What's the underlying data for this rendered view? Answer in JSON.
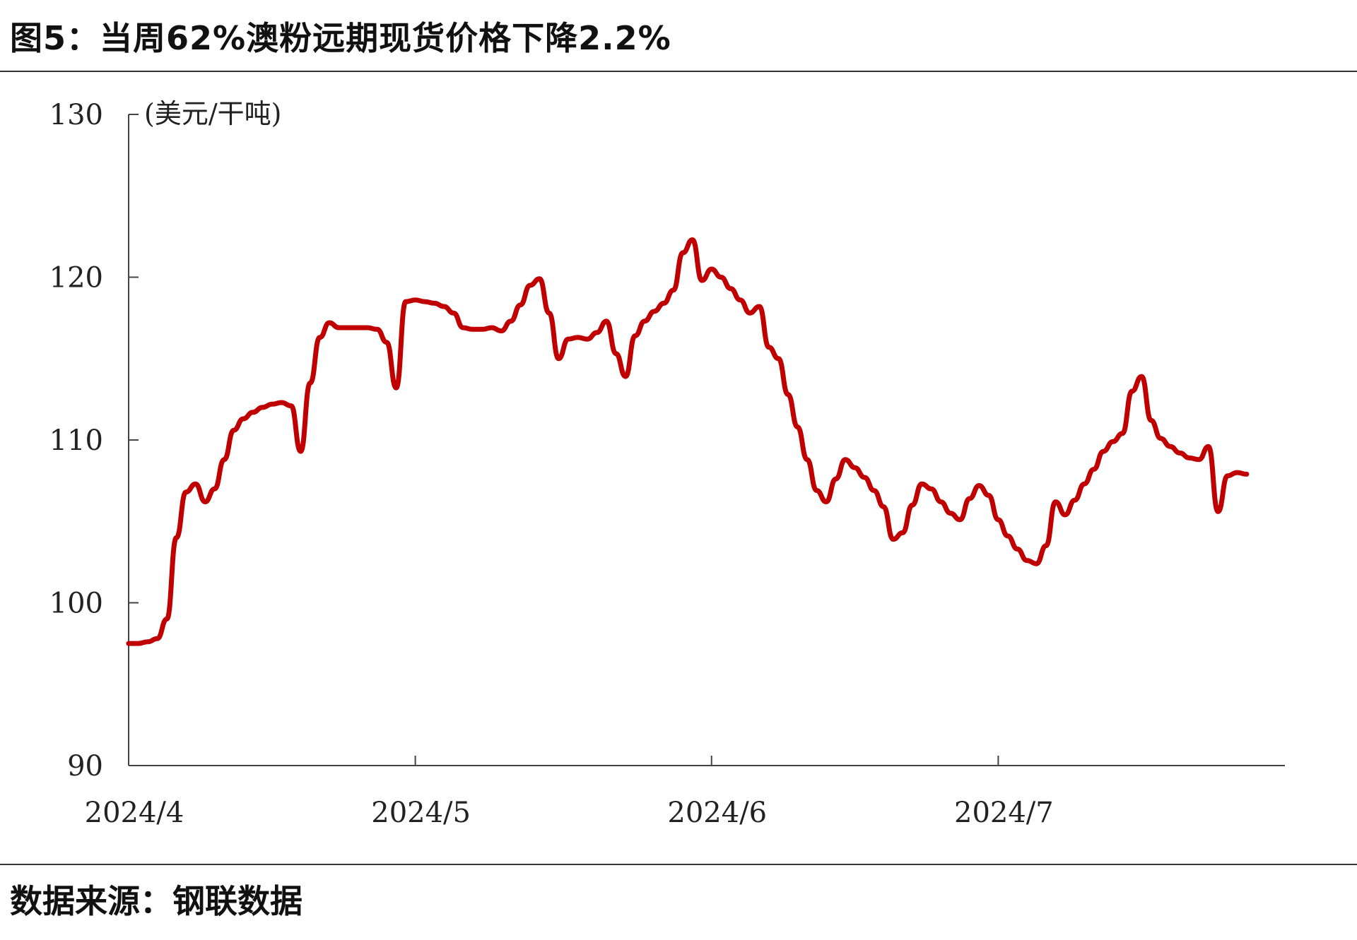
{
  "header": {
    "title": "图5：当周62%澳粉远期现货价格下降2.2%"
  },
  "footer": {
    "source": "数据来源：钢联数据"
  },
  "chart_data": {
    "type": "line",
    "title": "图5：当周62%澳粉远期现货价格下降2.2%",
    "unit": "(美元/干吨)",
    "xlabel": "",
    "ylabel": "",
    "ylim": [
      90,
      130
    ],
    "yticks": [
      90,
      100,
      110,
      120,
      130
    ],
    "xticks": [
      {
        "date": "2024-04-01",
        "label": "2024/4"
      },
      {
        "date": "2024-05-01",
        "label": "2024/5"
      },
      {
        "date": "2024-06-01",
        "label": "2024/6"
      },
      {
        "date": "2024-07-01",
        "label": "2024/7"
      }
    ],
    "xlim": [
      "2024-04-01",
      "2024-07-31"
    ],
    "grid": false,
    "legend": "none",
    "color": "#C00000",
    "series": [
      {
        "name": "",
        "points": [
          [
            "2024-04-01",
            97.5
          ],
          [
            "2024-04-02",
            97.5
          ],
          [
            "2024-04-03",
            97.6
          ],
          [
            "2024-04-04",
            97.8
          ],
          [
            "2024-04-05",
            99.0
          ],
          [
            "2024-04-06",
            104.0
          ],
          [
            "2024-04-07",
            106.8
          ],
          [
            "2024-04-08",
            107.3
          ],
          [
            "2024-04-09",
            106.2
          ],
          [
            "2024-04-10",
            107.0
          ],
          [
            "2024-04-11",
            108.8
          ],
          [
            "2024-04-12",
            110.6
          ],
          [
            "2024-04-13",
            111.3
          ],
          [
            "2024-04-14",
            111.7
          ],
          [
            "2024-04-15",
            112.0
          ],
          [
            "2024-04-16",
            112.2
          ],
          [
            "2024-04-17",
            112.3
          ],
          [
            "2024-04-18",
            112.1
          ],
          [
            "2024-04-19",
            109.3
          ],
          [
            "2024-04-20",
            113.5
          ],
          [
            "2024-04-21",
            116.3
          ],
          [
            "2024-04-22",
            117.2
          ],
          [
            "2024-04-23",
            116.9
          ],
          [
            "2024-04-24",
            116.9
          ],
          [
            "2024-04-25",
            116.9
          ],
          [
            "2024-04-26",
            116.9
          ],
          [
            "2024-04-27",
            116.8
          ],
          [
            "2024-04-28",
            116.0
          ],
          [
            "2024-04-29",
            113.2
          ],
          [
            "2024-04-30",
            118.5
          ],
          [
            "2024-05-01",
            118.6
          ],
          [
            "2024-05-02",
            118.5
          ],
          [
            "2024-05-03",
            118.4
          ],
          [
            "2024-05-04",
            118.2
          ],
          [
            "2024-05-05",
            117.8
          ],
          [
            "2024-05-06",
            116.9
          ],
          [
            "2024-05-07",
            116.8
          ],
          [
            "2024-05-08",
            116.8
          ],
          [
            "2024-05-09",
            116.9
          ],
          [
            "2024-05-10",
            116.7
          ],
          [
            "2024-05-11",
            117.3
          ],
          [
            "2024-05-12",
            118.3
          ],
          [
            "2024-05-13",
            119.5
          ],
          [
            "2024-05-14",
            119.9
          ],
          [
            "2024-05-15",
            117.8
          ],
          [
            "2024-05-16",
            115.0
          ],
          [
            "2024-05-17",
            116.2
          ],
          [
            "2024-05-18",
            116.3
          ],
          [
            "2024-05-19",
            116.2
          ],
          [
            "2024-05-20",
            116.6
          ],
          [
            "2024-05-21",
            117.3
          ],
          [
            "2024-05-22",
            115.3
          ],
          [
            "2024-05-23",
            113.9
          ],
          [
            "2024-05-24",
            116.4
          ],
          [
            "2024-05-25",
            117.3
          ],
          [
            "2024-05-26",
            117.9
          ],
          [
            "2024-05-27",
            118.4
          ],
          [
            "2024-05-28",
            119.2
          ],
          [
            "2024-05-29",
            121.5
          ],
          [
            "2024-05-30",
            122.3
          ],
          [
            "2024-05-31",
            119.8
          ],
          [
            "2024-06-01",
            120.5
          ],
          [
            "2024-06-02",
            120.0
          ],
          [
            "2024-06-03",
            119.3
          ],
          [
            "2024-06-04",
            118.6
          ],
          [
            "2024-06-05",
            117.8
          ],
          [
            "2024-06-06",
            118.2
          ],
          [
            "2024-06-07",
            115.7
          ],
          [
            "2024-06-08",
            115.0
          ],
          [
            "2024-06-09",
            112.8
          ],
          [
            "2024-06-10",
            110.8
          ],
          [
            "2024-06-11",
            108.8
          ],
          [
            "2024-06-12",
            106.9
          ],
          [
            "2024-06-13",
            106.2
          ],
          [
            "2024-06-14",
            107.6
          ],
          [
            "2024-06-15",
            108.8
          ],
          [
            "2024-06-16",
            108.3
          ],
          [
            "2024-06-17",
            107.7
          ],
          [
            "2024-06-18",
            106.9
          ],
          [
            "2024-06-19",
            105.9
          ],
          [
            "2024-06-20",
            103.9
          ],
          [
            "2024-06-21",
            104.3
          ],
          [
            "2024-06-22",
            106.0
          ],
          [
            "2024-06-23",
            107.3
          ],
          [
            "2024-06-24",
            107.0
          ],
          [
            "2024-06-25",
            106.2
          ],
          [
            "2024-06-26",
            105.5
          ],
          [
            "2024-06-27",
            105.1
          ],
          [
            "2024-06-28",
            106.4
          ],
          [
            "2024-06-29",
            107.2
          ],
          [
            "2024-06-30",
            106.6
          ],
          [
            "2024-07-01",
            105.1
          ],
          [
            "2024-07-02",
            104.1
          ],
          [
            "2024-07-03",
            103.3
          ],
          [
            "2024-07-04",
            102.6
          ],
          [
            "2024-07-05",
            102.4
          ],
          [
            "2024-07-06",
            103.5
          ],
          [
            "2024-07-07",
            106.2
          ],
          [
            "2024-07-08",
            105.4
          ],
          [
            "2024-07-09",
            106.3
          ],
          [
            "2024-07-10",
            107.3
          ],
          [
            "2024-07-11",
            108.2
          ],
          [
            "2024-07-12",
            109.3
          ],
          [
            "2024-07-13",
            109.9
          ],
          [
            "2024-07-14",
            110.4
          ],
          [
            "2024-07-15",
            113.0
          ],
          [
            "2024-07-16",
            113.9
          ],
          [
            "2024-07-17",
            111.2
          ],
          [
            "2024-07-18",
            110.1
          ],
          [
            "2024-07-19",
            109.6
          ],
          [
            "2024-07-20",
            109.2
          ],
          [
            "2024-07-21",
            108.9
          ],
          [
            "2024-07-22",
            108.8
          ],
          [
            "2024-07-23",
            109.6
          ],
          [
            "2024-07-24",
            105.6
          ],
          [
            "2024-07-25",
            107.8
          ],
          [
            "2024-07-26",
            108.0
          ],
          [
            "2024-07-27",
            107.9
          ]
        ]
      }
    ]
  }
}
